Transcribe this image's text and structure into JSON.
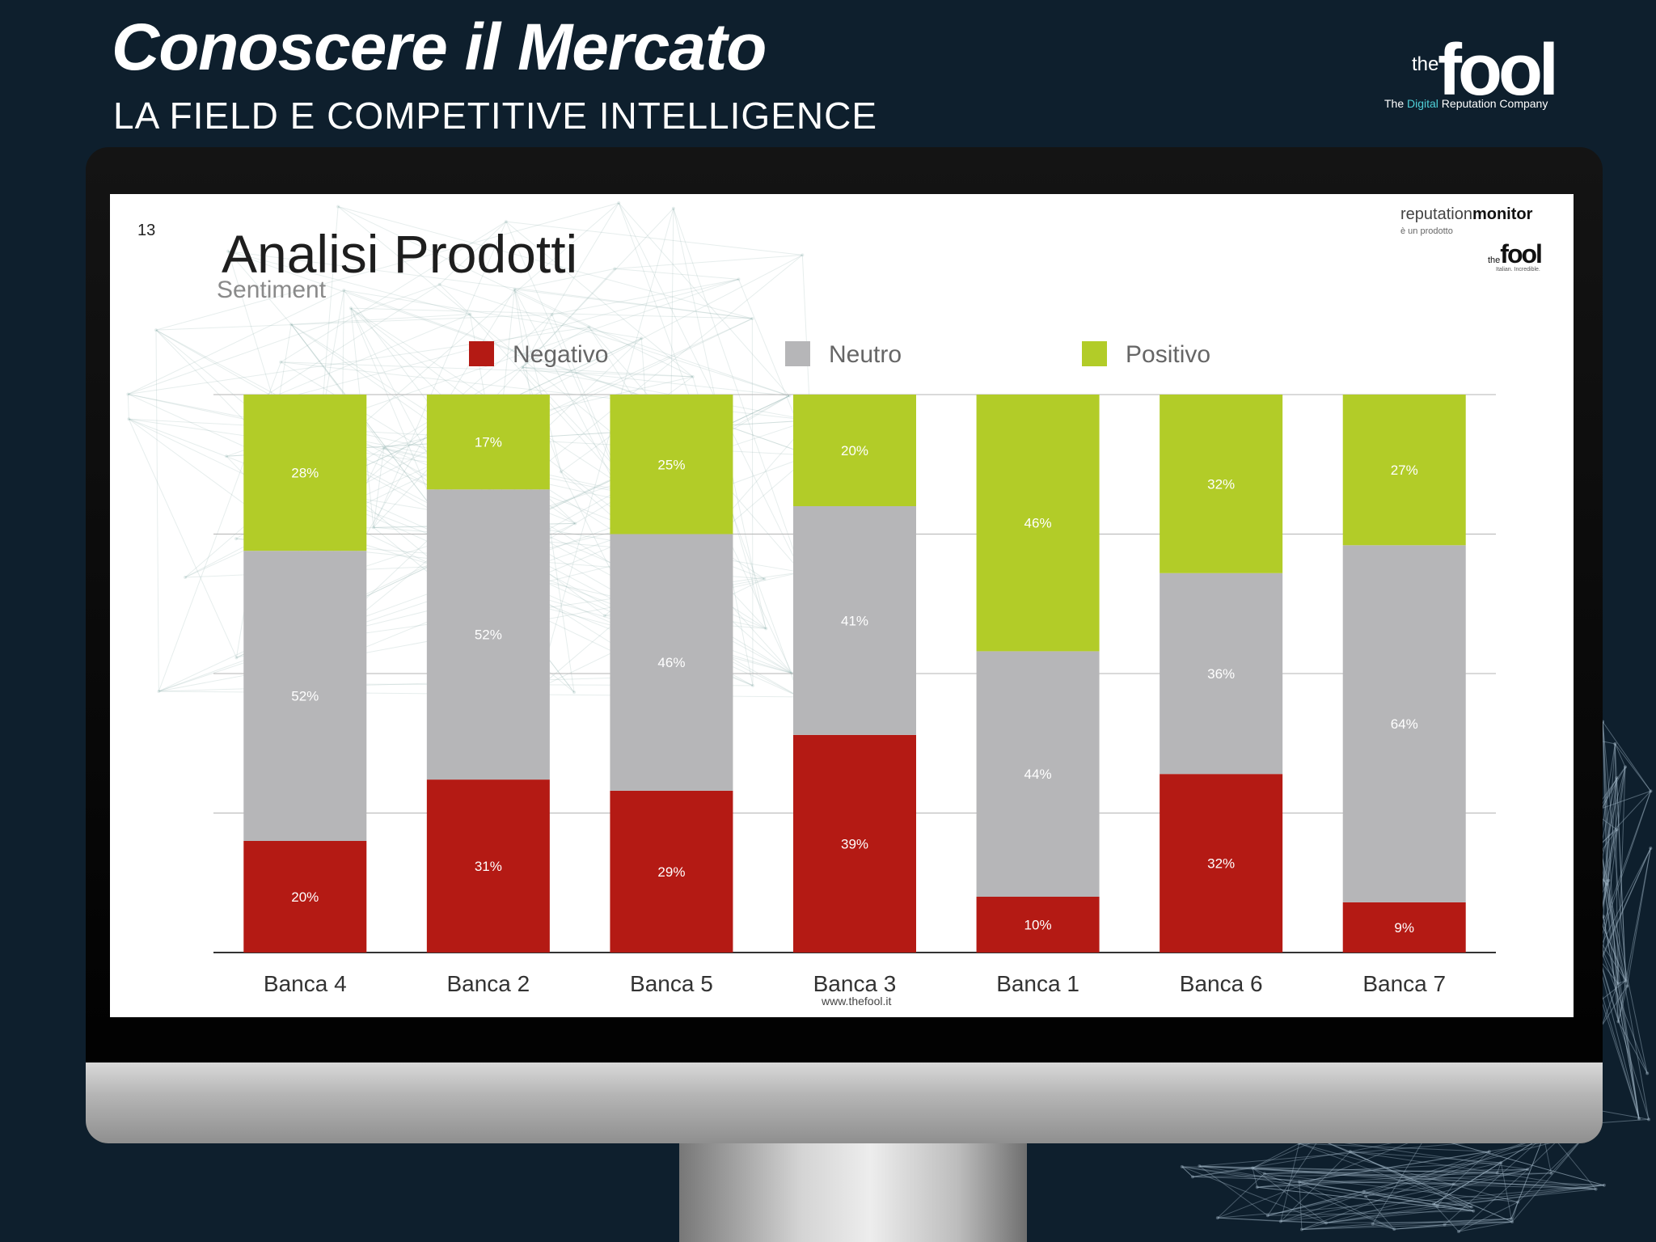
{
  "header": {
    "title": "Conoscere il Mercato",
    "subtitle": "LA FIELD E COMPETITIVE INTELLIGENCE"
  },
  "brand": {
    "the": "the",
    "name": "fool",
    "tagline_pre": "The ",
    "tagline_accent": "Digital",
    "tagline_post": " Reputation Company",
    "accent_color": "#4fd1d9"
  },
  "slide": {
    "page_number": "13",
    "title": "Analisi Prodotti",
    "subtitle": "Sentiment",
    "footer_url": "www.thefool.it",
    "logo": {
      "part1": "reputation",
      "part2": "monitor",
      "sub": "è un prodotto",
      "the": "the",
      "name": "fool",
      "small": "Italian. Incredible."
    }
  },
  "chart_data": {
    "type": "bar",
    "stacked": true,
    "percent_stacked": true,
    "categories": [
      "Banca 4",
      "Banca 2",
      "Banca 5",
      "Banca 3",
      "Banca 1",
      "Banca 6",
      "Banca 7"
    ],
    "series": [
      {
        "name": "Negativo",
        "color": "#b41a14",
        "values": [
          20,
          31,
          29,
          39,
          10,
          32,
          9
        ]
      },
      {
        "name": "Neutro",
        "color": "#b6b6b8",
        "values": [
          52,
          52,
          46,
          41,
          44,
          36,
          64
        ]
      },
      {
        "name": "Positivo",
        "color": "#b2cc28",
        "values": [
          28,
          17,
          25,
          20,
          46,
          32,
          27
        ]
      }
    ],
    "ylim": [
      0,
      100
    ],
    "grid": true,
    "legend_position": "top",
    "value_labels_suffix": "%"
  }
}
